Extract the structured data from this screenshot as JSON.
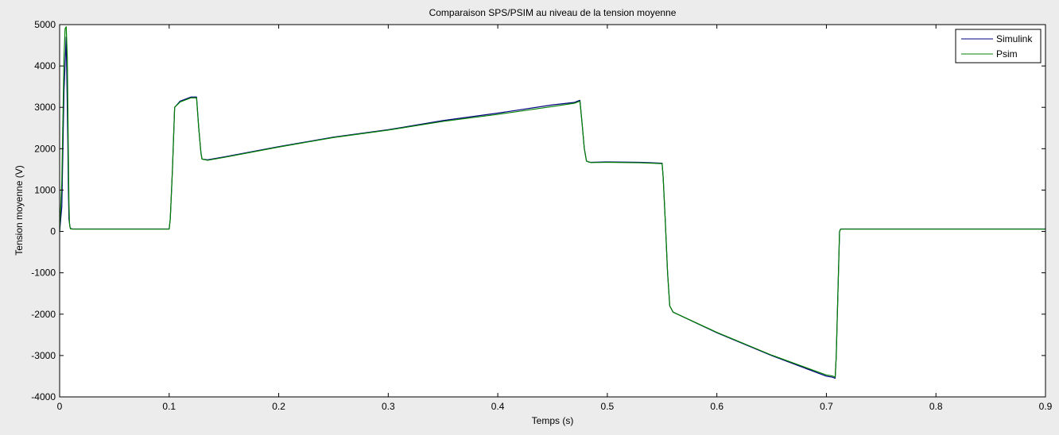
{
  "chart_data": {
    "type": "line",
    "title": "Comparaison SPS/PSIM au niveau de la tension moyenne",
    "xlabel": "Temps (s)",
    "ylabel": "Tension moyenne (V)",
    "xlim": [
      0,
      0.9
    ],
    "ylim": [
      -4000,
      5000
    ],
    "xticks": [
      0,
      0.1,
      0.2,
      0.3,
      0.4,
      0.5,
      0.6,
      0.7,
      0.8,
      0.9
    ],
    "xtick_labels": [
      "0",
      "0.1",
      "0.2",
      "0.3",
      "0.4",
      "0.5",
      "0.6",
      "0.7",
      "0.8",
      "0.9"
    ],
    "yticks": [
      -4000,
      -3000,
      -2000,
      -1000,
      0,
      1000,
      2000,
      3000,
      4000,
      5000
    ],
    "ytick_labels": [
      "-4000",
      "-3000",
      "-2000",
      "-1000",
      "0",
      "1000",
      "2000",
      "3000",
      "4000",
      "5000"
    ],
    "grid": false,
    "legend_position": "top-right",
    "background_color": "#ececec",
    "plot_background_color": "#ffffff",
    "series": [
      {
        "name": "Simulink",
        "color": "#000080",
        "x": [
          0,
          0.002,
          0.004,
          0.006,
          0.007,
          0.0075,
          0.008,
          0.0085,
          0.009,
          0.0095,
          0.01,
          0.012,
          0.05,
          0.1,
          0.101,
          0.103,
          0.105,
          0.11,
          0.115,
          0.12,
          0.125,
          0.127,
          0.129,
          0.13,
          0.135,
          0.15,
          0.2,
          0.25,
          0.3,
          0.35,
          0.4,
          0.45,
          0.47,
          0.475,
          0.477,
          0.479,
          0.481,
          0.483,
          0.485,
          0.5,
          0.53,
          0.55,
          0.551,
          0.553,
          0.555,
          0.557,
          0.56,
          0.6,
          0.65,
          0.7,
          0.705,
          0.708,
          0.709,
          0.71,
          0.711,
          0.712,
          0.713,
          0.715,
          0.72,
          0.75,
          0.8,
          0.85,
          0.9
        ],
        "y": [
          0,
          600,
          3400,
          4700,
          3000,
          2100,
          1000,
          300,
          200,
          100,
          70,
          60,
          60,
          60,
          300,
          1500,
          3000,
          3150,
          3200,
          3250,
          3250,
          2500,
          1900,
          1750,
          1730,
          1800,
          2050,
          2280,
          2460,
          2680,
          2860,
          3060,
          3120,
          3170,
          2600,
          2000,
          1700,
          1680,
          1670,
          1680,
          1670,
          1650,
          1300,
          200,
          -1000,
          -1800,
          -1950,
          -2450,
          -3000,
          -3500,
          -3520,
          -3550,
          -3000,
          -2000,
          -1000,
          0,
          60,
          60,
          60,
          60,
          60,
          60,
          60
        ]
      },
      {
        "name": "Psim",
        "color": "#008000",
        "x": [
          0,
          0.002,
          0.004,
          0.005,
          0.006,
          0.007,
          0.0075,
          0.008,
          0.0085,
          0.009,
          0.0095,
          0.01,
          0.012,
          0.05,
          0.1,
          0.101,
          0.103,
          0.105,
          0.11,
          0.115,
          0.12,
          0.125,
          0.127,
          0.129,
          0.13,
          0.135,
          0.15,
          0.2,
          0.25,
          0.3,
          0.35,
          0.4,
          0.45,
          0.47,
          0.475,
          0.477,
          0.479,
          0.481,
          0.483,
          0.485,
          0.5,
          0.53,
          0.55,
          0.551,
          0.553,
          0.555,
          0.557,
          0.56,
          0.6,
          0.65,
          0.7,
          0.705,
          0.708,
          0.709,
          0.71,
          0.711,
          0.712,
          0.713,
          0.715,
          0.72,
          0.75,
          0.8,
          0.85,
          0.9
        ],
        "y": [
          0,
          1200,
          4200,
          4900,
          4950,
          4200,
          3000,
          1800,
          700,
          200,
          100,
          60,
          55,
          55,
          55,
          300,
          1500,
          3000,
          3130,
          3180,
          3230,
          3230,
          2500,
          1900,
          1750,
          1720,
          1790,
          2040,
          2270,
          2450,
          2660,
          2830,
          3020,
          3100,
          3150,
          2600,
          2000,
          1700,
          1680,
          1665,
          1670,
          1660,
          1640,
          1300,
          200,
          -1000,
          -1800,
          -1950,
          -2440,
          -2990,
          -3470,
          -3490,
          -3520,
          -3000,
          -2000,
          -1000,
          0,
          55,
          55,
          55,
          55,
          55,
          55,
          55
        ]
      }
    ]
  }
}
